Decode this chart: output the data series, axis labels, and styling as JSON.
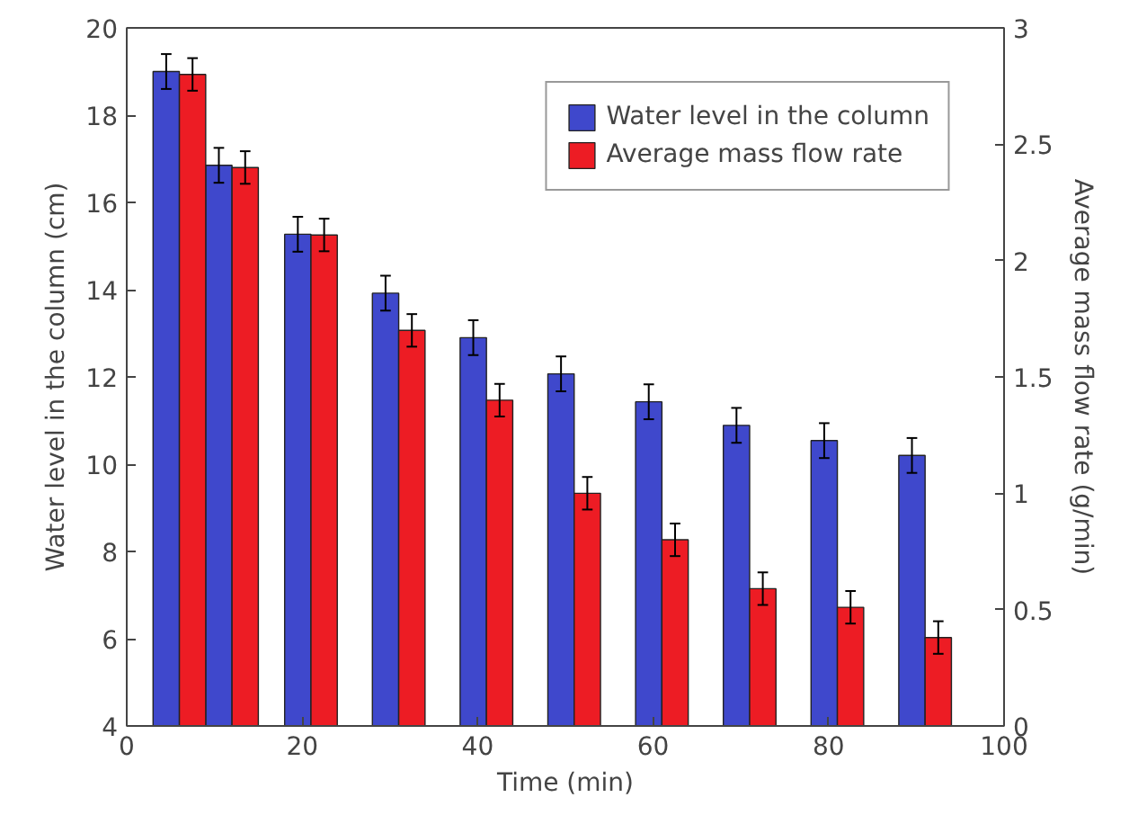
{
  "chart_data": {
    "type": "bar",
    "xlabel": "Time (min)",
    "ylabel": "Water level in the column (cm)",
    "y2label": "Average mass flow rate (g/min)",
    "x": [
      6,
      12,
      21,
      31,
      41,
      51,
      61,
      71,
      81,
      91
    ],
    "series": [
      {
        "name": "Water level in the column",
        "color": "#3f48cc",
        "values": [
          19.0,
          16.85,
          15.27,
          13.92,
          12.9,
          12.07,
          11.43,
          10.89,
          10.54,
          10.2
        ],
        "errors": [
          0.4,
          0.4,
          0.4,
          0.4,
          0.4,
          0.4,
          0.4,
          0.4,
          0.4,
          0.4
        ]
      },
      {
        "name": "Average mass flow rate",
        "color": "#ed1c24",
        "axis": "y2",
        "values": [
          2.8,
          2.4,
          2.11,
          1.7,
          1.4,
          1.0,
          0.8,
          0.59,
          0.51,
          0.38
        ],
        "errors": [
          0.07,
          0.07,
          0.07,
          0.07,
          0.07,
          0.07,
          0.07,
          0.07,
          0.07,
          0.07
        ]
      }
    ],
    "xlim": [
      0,
      100
    ],
    "xticks": [
      0,
      20,
      40,
      60,
      80,
      100
    ],
    "ylim": [
      4,
      20
    ],
    "yticks": [
      4,
      6,
      8,
      10,
      12,
      14,
      16,
      18,
      20
    ],
    "y2lim": [
      0,
      3
    ],
    "y2ticks": [
      0,
      0.5,
      1,
      1.5,
      2,
      2.5,
      3
    ],
    "grid": false,
    "legend": "top right"
  }
}
